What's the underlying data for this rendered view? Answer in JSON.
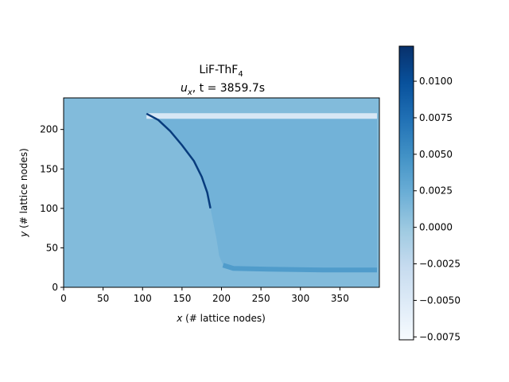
{
  "chart_data": {
    "type": "heatmap",
    "title_line1": "LiF-ThF",
    "title_line1_sub": "4",
    "title_line2_var": "u",
    "title_line2_var_sub": "x",
    "title_line2_rest": ", t = 3859.7s",
    "xlabel_var": "x",
    "xlabel_rest": " (# lattice nodes)",
    "ylabel_var": "y",
    "ylabel_rest": " (# lattice nodes)",
    "xlim": [
      0,
      400
    ],
    "ylim": [
      0,
      240
    ],
    "xticks": [
      0,
      50,
      100,
      150,
      200,
      250,
      300,
      350
    ],
    "yticks": [
      0,
      50,
      100,
      150,
      200
    ],
    "colormap": "Blues",
    "colorbar": {
      "vmin": -0.0077,
      "vmax": 0.0124,
      "ticks": [
        -0.0075,
        -0.005,
        -0.0025,
        0.0,
        0.0025,
        0.005,
        0.0075,
        0.01
      ],
      "tick_labels": [
        "−0.0075",
        "−0.0050",
        "−0.0025",
        "0.0000",
        "0.0025",
        "0.0050",
        "0.0075",
        "0.0100"
      ]
    },
    "field": {
      "background_value": 0.0012,
      "interior_value": 0.002,
      "front_value": 0.0115,
      "top_band_value": -0.0045,
      "bottom_band_value": 0.004,
      "front_curve": [
        [
          105,
          220
        ],
        [
          120,
          212
        ],
        [
          135,
          198
        ],
        [
          150,
          180
        ],
        [
          165,
          160
        ],
        [
          175,
          140
        ],
        [
          182,
          120
        ],
        [
          186,
          100
        ],
        [
          190,
          80
        ],
        [
          194,
          60
        ],
        [
          197,
          40
        ],
        [
          202,
          28
        ],
        [
          215,
          24
        ],
        [
          260,
          23
        ],
        [
          330,
          22
        ],
        [
          397,
          22
        ]
      ],
      "top_edge_y": 220,
      "right_edge_x": 397
    }
  }
}
